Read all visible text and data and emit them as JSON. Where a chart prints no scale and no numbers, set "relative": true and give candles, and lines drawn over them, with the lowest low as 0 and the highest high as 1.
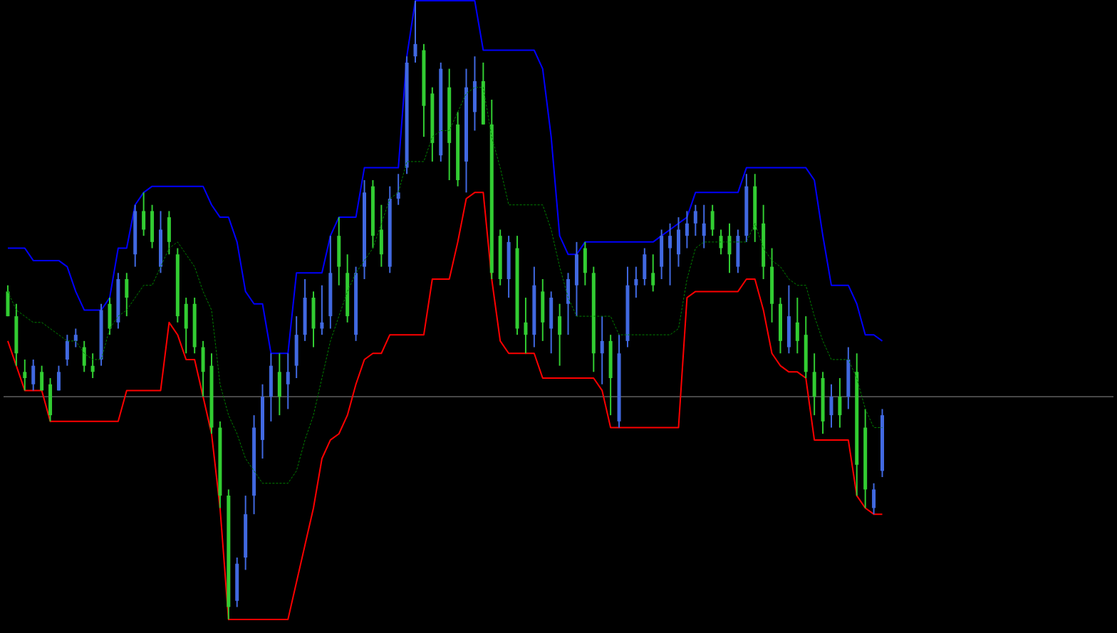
{
  "chart_data": {
    "type": "candlestick",
    "relative": true,
    "categories": [
      null,
      null,
      null,
      null,
      null,
      null,
      null,
      null,
      null,
      null,
      null,
      null,
      null,
      null,
      null,
      null,
      null,
      null,
      null,
      null,
      null,
      null,
      null,
      null,
      null,
      null,
      null,
      null,
      null,
      null,
      null,
      null,
      null,
      null,
      null,
      null,
      null,
      null,
      null,
      null,
      null,
      null,
      null,
      null,
      null,
      null,
      null,
      null,
      null,
      null,
      null,
      null,
      null,
      null,
      null,
      null,
      null,
      null,
      null,
      null,
      null,
      null,
      null,
      null,
      null,
      null,
      null,
      null,
      null,
      null,
      null,
      null,
      null,
      null,
      null,
      null,
      null,
      null,
      null,
      null,
      null,
      null,
      null,
      null,
      null,
      null,
      null,
      null,
      null,
      null,
      null,
      null,
      null,
      null,
      null,
      null,
      null,
      null,
      null,
      null,
      null,
      null,
      null,
      null
    ],
    "colors": [
      "#32cd32",
      "#32cd32",
      "#32cd32",
      "#4169e1",
      "#32cd32",
      "#32cd32",
      "#4169e1",
      "#4169e1",
      "#4169e1",
      "#32cd32",
      "#32cd32",
      "#4169e1",
      "#32cd32",
      "#4169e1",
      "#32cd32",
      "#4169e1",
      "#32cd32",
      "#32cd32",
      "#4169e1",
      "#32cd32",
      "#32cd32",
      "#32cd32",
      "#32cd32",
      "#32cd32",
      "#32cd32",
      "#32cd32",
      "#32cd32",
      "#4169e1",
      "#4169e1",
      "#4169e1",
      "#4169e1",
      "#4169e1",
      "#32cd32",
      "#4169e1",
      "#4169e1",
      "#4169e1",
      "#32cd32",
      "#4169e1",
      "#4169e1",
      "#32cd32",
      "#32cd32",
      "#4169e1",
      "#4169e1",
      "#32cd32",
      "#32cd32",
      "#4169e1",
      "#4169e1",
      "#4169e1",
      "#4169e1",
      "#32cd32",
      "#32cd32",
      "#4169e1",
      "#32cd32",
      "#32cd32",
      "#4169e1",
      "#4169e1",
      "#32cd32",
      "#32cd32",
      "#32cd32",
      "#4169e1",
      "#32cd32",
      "#32cd32",
      "#4169e1",
      "#32cd32",
      "#4169e1",
      "#32cd32",
      "#4169e1",
      "#4169e1",
      "#32cd32",
      "#32cd32",
      "#4169e1",
      "#32cd32",
      "#4169e1",
      "#4169e1",
      "#4169e1",
      "#4169e1",
      "#32cd32",
      "#4169e1",
      "#4169e1",
      "#4169e1",
      "#4169e1",
      "#4169e1",
      "#4169e1",
      "#32cd32",
      "#32cd32",
      "#32cd32",
      "#4169e1",
      "#4169e1",
      "#32cd32",
      "#32cd32",
      "#32cd32",
      "#32cd32",
      "#4169e1",
      "#32cd32",
      "#32cd32",
      "#32cd32",
      "#32cd32",
      "#4169e1",
      "#32cd32",
      "#4169e1",
      "#32cd32",
      "#32cd32",
      "#4169e1",
      "#4169e1"
    ],
    "ohlc": [
      [
        0.53,
        0.54,
        0.49,
        0.49
      ],
      [
        0.49,
        0.51,
        0.41,
        0.43
      ],
      [
        0.4,
        0.42,
        0.37,
        0.39
      ],
      [
        0.38,
        0.42,
        0.37,
        0.41
      ],
      [
        0.4,
        0.41,
        0.37,
        0.37
      ],
      [
        0.38,
        0.39,
        0.32,
        0.33
      ],
      [
        0.37,
        0.41,
        0.37,
        0.4
      ],
      [
        0.42,
        0.46,
        0.41,
        0.45
      ],
      [
        0.45,
        0.47,
        0.44,
        0.46
      ],
      [
        0.44,
        0.45,
        0.4,
        0.41
      ],
      [
        0.41,
        0.43,
        0.39,
        0.4
      ],
      [
        0.42,
        0.51,
        0.41,
        0.5
      ],
      [
        0.51,
        0.52,
        0.46,
        0.47
      ],
      [
        0.48,
        0.56,
        0.47,
        0.55
      ],
      [
        0.55,
        0.56,
        0.49,
        0.52
      ],
      [
        0.59,
        0.67,
        0.57,
        0.66
      ],
      [
        0.66,
        0.69,
        0.62,
        0.63
      ],
      [
        0.66,
        0.67,
        0.6,
        0.61
      ],
      [
        0.57,
        0.66,
        0.56,
        0.63
      ],
      [
        0.65,
        0.66,
        0.59,
        0.61
      ],
      [
        0.59,
        0.6,
        0.48,
        0.49
      ],
      [
        0.51,
        0.52,
        0.43,
        0.47
      ],
      [
        0.51,
        0.52,
        0.43,
        0.44
      ],
      [
        0.44,
        0.45,
        0.36,
        0.4
      ],
      [
        0.41,
        0.43,
        0.3,
        0.31
      ],
      [
        0.31,
        0.32,
        0.18,
        0.2
      ],
      [
        0.2,
        0.21,
        0.0,
        0.02
      ],
      [
        0.03,
        0.1,
        0.02,
        0.09
      ],
      [
        0.1,
        0.2,
        0.08,
        0.17
      ],
      [
        0.2,
        0.33,
        0.17,
        0.31
      ],
      [
        0.29,
        0.38,
        0.26,
        0.36
      ],
      [
        0.36,
        0.43,
        0.32,
        0.41
      ],
      [
        0.4,
        0.43,
        0.33,
        0.36
      ],
      [
        0.38,
        0.43,
        0.34,
        0.4
      ],
      [
        0.41,
        0.49,
        0.39,
        0.46
      ],
      [
        0.46,
        0.55,
        0.45,
        0.52
      ],
      [
        0.52,
        0.53,
        0.44,
        0.47
      ],
      [
        0.47,
        0.54,
        0.46,
        0.48
      ],
      [
        0.49,
        0.62,
        0.47,
        0.56
      ],
      [
        0.62,
        0.65,
        0.54,
        0.57
      ],
      [
        0.56,
        0.59,
        0.48,
        0.49
      ],
      [
        0.46,
        0.57,
        0.45,
        0.56
      ],
      [
        0.57,
        0.71,
        0.55,
        0.69
      ],
      [
        0.7,
        0.71,
        0.6,
        0.62
      ],
      [
        0.63,
        0.67,
        0.57,
        0.59
      ],
      [
        0.57,
        0.7,
        0.56,
        0.68
      ],
      [
        0.68,
        0.72,
        0.67,
        0.69
      ],
      [
        0.73,
        0.91,
        0.72,
        0.9
      ],
      [
        0.91,
        1.0,
        0.9,
        0.93
      ],
      [
        0.92,
        0.93,
        0.78,
        0.83
      ],
      [
        0.85,
        0.86,
        0.74,
        0.77
      ],
      [
        0.75,
        0.9,
        0.74,
        0.89
      ],
      [
        0.86,
        0.89,
        0.71,
        0.77
      ],
      [
        0.8,
        0.82,
        0.7,
        0.71
      ],
      [
        0.74,
        0.89,
        0.69,
        0.86
      ],
      [
        0.82,
        0.91,
        0.79,
        0.87
      ],
      [
        0.87,
        0.9,
        0.8,
        0.8
      ],
      [
        0.8,
        0.84,
        0.55,
        0.56
      ],
      [
        0.62,
        0.63,
        0.54,
        0.55
      ],
      [
        0.55,
        0.62,
        0.52,
        0.61
      ],
      [
        0.6,
        0.62,
        0.46,
        0.47
      ],
      [
        0.48,
        0.52,
        0.43,
        0.46
      ],
      [
        0.46,
        0.57,
        0.44,
        0.54
      ],
      [
        0.53,
        0.55,
        0.45,
        0.48
      ],
      [
        0.47,
        0.53,
        0.43,
        0.52
      ],
      [
        0.49,
        0.51,
        0.41,
        0.46
      ],
      [
        0.51,
        0.56,
        0.46,
        0.55
      ],
      [
        0.54,
        0.61,
        0.49,
        0.59
      ],
      [
        0.6,
        0.61,
        0.54,
        0.56
      ],
      [
        0.56,
        0.57,
        0.4,
        0.43
      ],
      [
        0.43,
        0.49,
        0.38,
        0.45
      ],
      [
        0.45,
        0.46,
        0.33,
        0.39
      ],
      [
        0.32,
        0.46,
        0.31,
        0.43
      ],
      [
        0.45,
        0.57,
        0.44,
        0.54
      ],
      [
        0.54,
        0.57,
        0.52,
        0.55
      ],
      [
        0.55,
        0.6,
        0.54,
        0.59
      ],
      [
        0.56,
        0.59,
        0.53,
        0.54
      ],
      [
        0.57,
        0.63,
        0.55,
        0.62
      ],
      [
        0.6,
        0.64,
        0.54,
        0.62
      ],
      [
        0.59,
        0.65,
        0.57,
        0.63
      ],
      [
        0.62,
        0.66,
        0.6,
        0.64
      ],
      [
        0.64,
        0.67,
        0.62,
        0.66
      ],
      [
        0.62,
        0.67,
        0.6,
        0.64
      ],
      [
        0.66,
        0.67,
        0.62,
        0.63
      ],
      [
        0.62,
        0.63,
        0.59,
        0.6
      ],
      [
        0.62,
        0.64,
        0.56,
        0.59
      ],
      [
        0.57,
        0.63,
        0.56,
        0.62
      ],
      [
        0.62,
        0.72,
        0.61,
        0.7
      ],
      [
        0.7,
        0.72,
        0.61,
        0.63
      ],
      [
        0.64,
        0.67,
        0.55,
        0.57
      ],
      [
        0.57,
        0.6,
        0.48,
        0.51
      ],
      [
        0.51,
        0.52,
        0.43,
        0.45
      ],
      [
        0.44,
        0.54,
        0.43,
        0.49
      ],
      [
        0.48,
        0.52,
        0.43,
        0.45
      ],
      [
        0.46,
        0.49,
        0.39,
        0.4
      ],
      [
        0.4,
        0.43,
        0.33,
        0.36
      ],
      [
        0.39,
        0.4,
        0.3,
        0.32
      ],
      [
        0.33,
        0.38,
        0.31,
        0.36
      ],
      [
        0.36,
        0.39,
        0.31,
        0.33
      ],
      [
        0.36,
        0.44,
        0.34,
        0.42
      ],
      [
        0.4,
        0.43,
        0.2,
        0.25
      ],
      [
        0.31,
        0.34,
        0.18,
        0.21
      ],
      [
        0.18,
        0.22,
        0.17,
        0.21
      ],
      [
        0.24,
        0.34,
        0.23,
        0.33
      ]
    ],
    "series": [
      {
        "type": "line",
        "color": "#0000ff",
        "line_style": "solid",
        "values": [
          0.6,
          0.6,
          0.6,
          0.58,
          0.58,
          0.58,
          0.58,
          0.57,
          0.53,
          0.5,
          0.5,
          0.5,
          0.52,
          0.6,
          0.6,
          0.67,
          0.69,
          0.7,
          0.7,
          0.7,
          0.7,
          0.7,
          0.7,
          0.7,
          0.67,
          0.65,
          0.65,
          0.61,
          0.53,
          0.51,
          0.51,
          0.43,
          0.43,
          0.43,
          0.56,
          0.56,
          0.56,
          0.56,
          0.62,
          0.65,
          0.65,
          0.65,
          0.73,
          0.73,
          0.73,
          0.73,
          0.73,
          0.91,
          1,
          1,
          1,
          1,
          1,
          1,
          1,
          1,
          0.92,
          0.92,
          0.92,
          0.92,
          0.92,
          0.92,
          0.92,
          0.89,
          0.78,
          0.62,
          0.59,
          0.59,
          0.61,
          0.61,
          0.61,
          0.61,
          0.61,
          0.61,
          0.61,
          0.61,
          0.61,
          0.62,
          0.63,
          0.64,
          0.65,
          0.69,
          0.69,
          0.69,
          0.69,
          0.69,
          0.69,
          0.73,
          0.73,
          0.73,
          0.73,
          0.73,
          0.73,
          0.73,
          0.73,
          0.71,
          0.62,
          0.54,
          0.54,
          0.54,
          0.51,
          0.46,
          0.46,
          0.45
        ]
      },
      {
        "type": "line",
        "color": "#ff0000",
        "line_style": "solid",
        "values": [
          0.45,
          0.41,
          0.37,
          0.37,
          0.37,
          0.32,
          0.32,
          0.32,
          0.32,
          0.32,
          0.32,
          0.32,
          0.32,
          0.32,
          0.37,
          0.37,
          0.37,
          0.37,
          0.37,
          0.48,
          0.46,
          0.42,
          0.42,
          0.36,
          0.3,
          0.18,
          0,
          0,
          0,
          0,
          0,
          0,
          0,
          0,
          0.06,
          0.12,
          0.18,
          0.26,
          0.29,
          0.3,
          0.33,
          0.38,
          0.42,
          0.43,
          0.43,
          0.46,
          0.46,
          0.46,
          0.46,
          0.46,
          0.55,
          0.55,
          0.55,
          0.61,
          0.68,
          0.69,
          0.69,
          0.55,
          0.45,
          0.43,
          0.43,
          0.43,
          0.43,
          0.39,
          0.39,
          0.39,
          0.39,
          0.39,
          0.39,
          0.39,
          0.37,
          0.31,
          0.31,
          0.31,
          0.31,
          0.31,
          0.31,
          0.31,
          0.31,
          0.31,
          0.52,
          0.53,
          0.53,
          0.53,
          0.53,
          0.53,
          0.53,
          0.55,
          0.55,
          0.5,
          0.43,
          0.41,
          0.4,
          0.4,
          0.39,
          0.29,
          0.29,
          0.29,
          0.29,
          0.29,
          0.2,
          0.18,
          0.17,
          0.17
        ]
      },
      {
        "type": "line",
        "color": "#008000",
        "line_style": "dashed",
        "values": [
          0.53,
          0.5,
          0.49,
          0.48,
          0.48,
          0.47,
          0.46,
          0.45,
          0.45,
          0.43,
          0.42,
          0.42,
          0.47,
          0.49,
          0.5,
          0.52,
          0.54,
          0.54,
          0.57,
          0.6,
          0.61,
          0.59,
          0.57,
          0.53,
          0.5,
          0.38,
          0.33,
          0.3,
          0.26,
          0.24,
          0.22,
          0.22,
          0.22,
          0.22,
          0.24,
          0.29,
          0.33,
          0.39,
          0.45,
          0.49,
          0.53,
          0.56,
          0.58,
          0.6,
          0.64,
          0.68,
          0.69,
          0.74,
          0.74,
          0.74,
          0.78,
          0.79,
          0.79,
          0.82,
          0.85,
          0.86,
          0.86,
          0.78,
          0.73,
          0.67,
          0.67,
          0.67,
          0.67,
          0.67,
          0.63,
          0.57,
          0.52,
          0.49,
          0.49,
          0.49,
          0.49,
          0.49,
          0.46,
          0.46,
          0.46,
          0.46,
          0.46,
          0.46,
          0.46,
          0.47,
          0.55,
          0.6,
          0.61,
          0.61,
          0.61,
          0.61,
          0.61,
          0.61,
          0.64,
          0.6,
          0.58,
          0.57,
          0.55,
          0.54,
          0.54,
          0.49,
          0.45,
          0.42,
          0.42,
          0.42,
          0.39,
          0.34,
          0.31,
          0.31
        ]
      }
    ],
    "ref_lines": [
      {
        "axis": "y",
        "value": 0.36,
        "color": "#909090"
      }
    ]
  }
}
